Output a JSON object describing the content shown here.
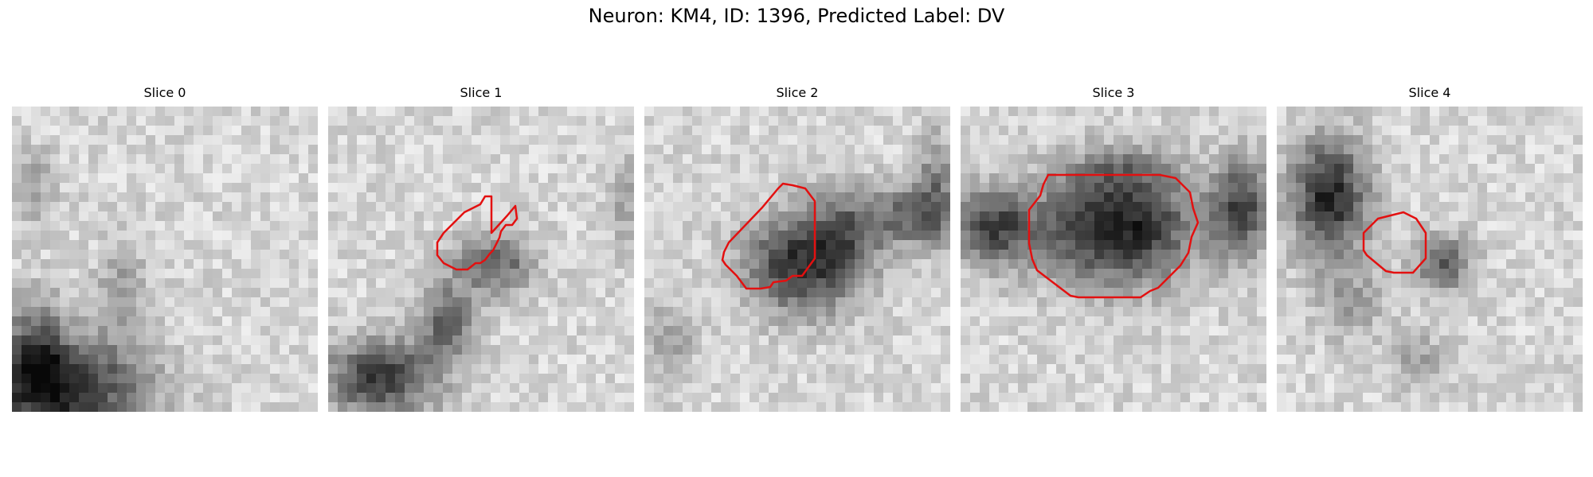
{
  "figure": {
    "title": "Neuron: KM4, ID: 1396, Predicted Label: DV"
  },
  "contour_color": "#e31010",
  "panels": [
    {
      "title": "Slice 0",
      "has_contour": false
    },
    {
      "title": "Slice 1",
      "has_contour": true
    },
    {
      "title": "Slice 2",
      "has_contour": true
    },
    {
      "title": "Slice 3",
      "has_contour": true
    },
    {
      "title": "Slice 4",
      "has_contour": true
    }
  ]
}
